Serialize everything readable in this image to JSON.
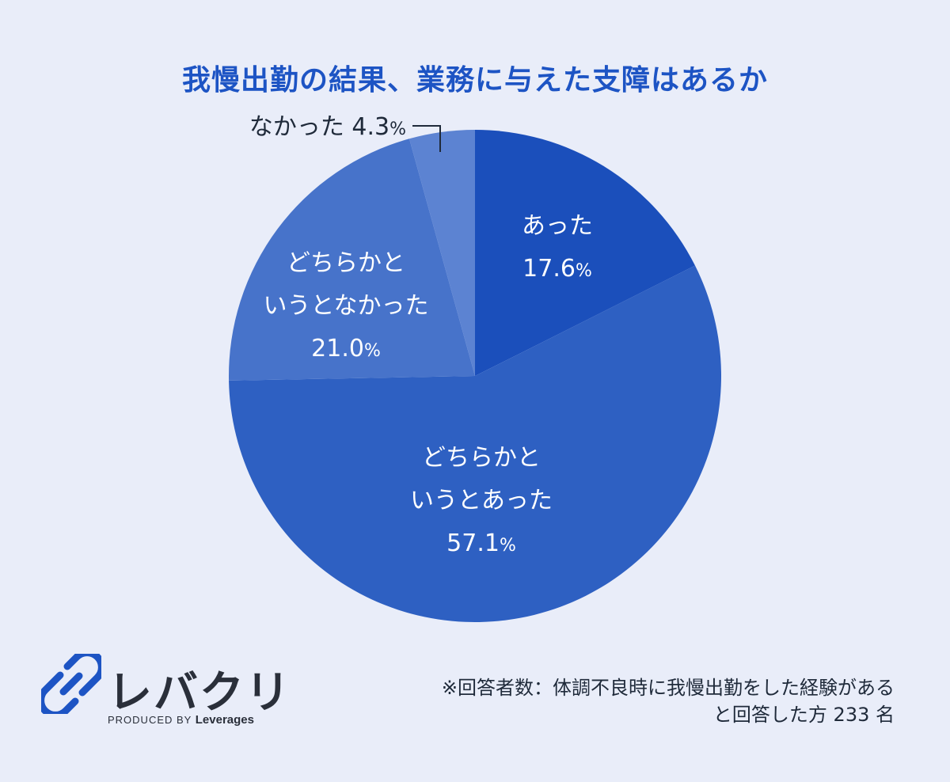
{
  "chart_data": {
    "type": "pie",
    "title": "我慢出勤の結果、業務に与えた支障はあるか",
    "slices": [
      {
        "label_lines": [
          "あった"
        ],
        "value": 17.6,
        "value_text": "17.6",
        "color": "#1b4fbb"
      },
      {
        "label_lines": [
          "どちらかと",
          "いうとあった"
        ],
        "value": 57.1,
        "value_text": "57.1",
        "color": "#2e60c2"
      },
      {
        "label_lines": [
          "どちらかと",
          "いうとなかった"
        ],
        "value": 21.0,
        "value_text": "21.0",
        "color": "#4773ca"
      },
      {
        "label_lines": [
          "なかった"
        ],
        "value": 4.3,
        "value_text": "4.3",
        "color": "#5c83d2"
      }
    ],
    "unit": "%",
    "start_angle_deg": 0,
    "direction": "clockwise",
    "legend": "none"
  },
  "logo": {
    "name": "レバクリ",
    "produced_by": "PRODUCED BY",
    "brand": "Leverages",
    "mark_color": "#1d54c4"
  },
  "note": {
    "line1": "※回答者数：体調不良時に我慢出勤をした経験がある",
    "line2": "と回答した方 233 名"
  },
  "colors": {
    "background": "#e9edf9",
    "title": "#1d54c4"
  }
}
